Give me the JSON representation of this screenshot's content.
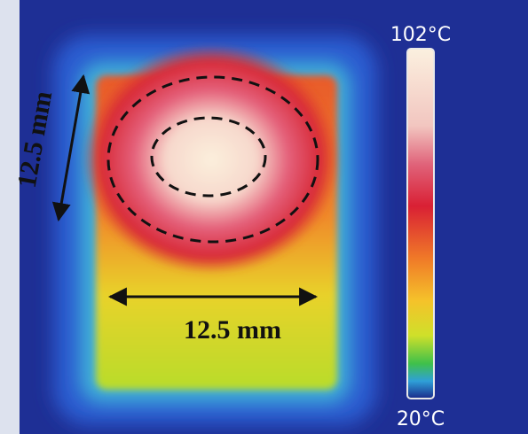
{
  "colorbar": {
    "max_label": "102°C",
    "min_label": "20°C"
  },
  "dimensions": {
    "height_label": "12.5 mm",
    "width_label": "12.5 mm"
  }
}
